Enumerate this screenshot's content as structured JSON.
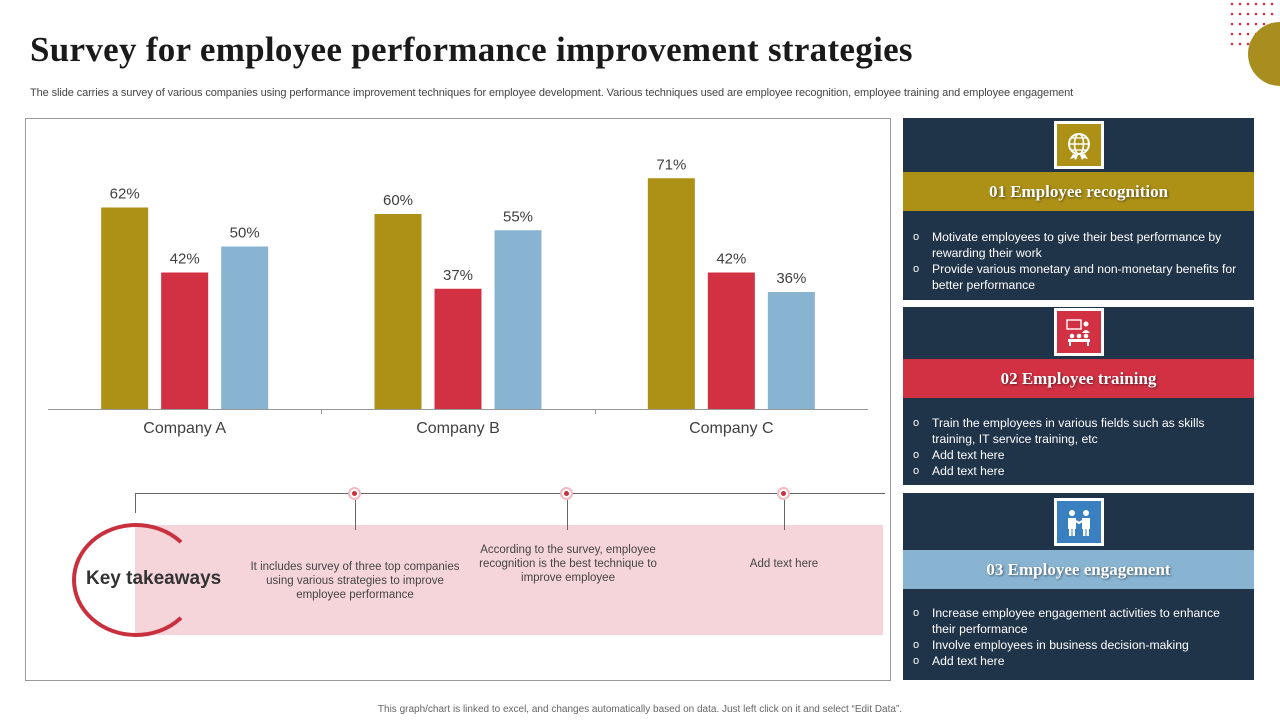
{
  "title": "Survey for employee performance improvement strategies",
  "subtitle": "The slide carries a survey of various companies using performance improvement techniques for employee development. Various techniques used are employee recognition, employee training and employee engagement",
  "footer": "This graph/chart is linked to excel, and changes automatically based on data. Just left click on it and select “Edit Data”.",
  "chart_data": {
    "type": "bar",
    "title": "",
    "xlabel": "",
    "ylabel": "",
    "ylim": [
      0,
      80
    ],
    "categories": [
      "Company A",
      "Company B",
      "Company C"
    ],
    "series": [
      {
        "name": "Employee recognition",
        "color": "#ad9117",
        "values": [
          62,
          60,
          71
        ]
      },
      {
        "name": "Employee training",
        "color": "#d13143",
        "values": [
          42,
          37,
          42
        ]
      },
      {
        "name": "Employee engagement",
        "color": "#88b4d2",
        "values": [
          50,
          55,
          36
        ]
      }
    ],
    "value_suffix": "%",
    "grid": false,
    "legend": "none"
  },
  "takeaways": {
    "label": "Key takeaways",
    "items": [
      "It includes survey of three top companies using various strategies to improve employee performance",
      "According to the survey, employee recognition is the best technique to improve employee",
      "Add text here"
    ]
  },
  "panels": [
    {
      "header": "01 Employee recognition",
      "header_color": "#ad9117",
      "icon_bg": "#ad9117",
      "icon": "globe-certificate-icon",
      "bullets": [
        "Motivate employees to give their best performance by rewarding their work",
        "Provide various monetary and non-monetary benefits for better performance"
      ]
    },
    {
      "header": "02 Employee training",
      "header_color": "#d13143",
      "icon_bg": "#d13143",
      "icon": "training-class-icon",
      "bullets": [
        "Train the employees in various fields such as skills training, IT service training, etc",
        "Add text here",
        "Add text here"
      ]
    },
    {
      "header": "03 Employee engagement",
      "header_color": "#88b4d2",
      "icon_bg": "#3a7fbf",
      "icon": "handshake-team-icon",
      "bullets": [
        "Increase employee engagement activities to enhance their performance",
        "Involve  employees in business decision-making",
        "Add text here"
      ]
    }
  ]
}
